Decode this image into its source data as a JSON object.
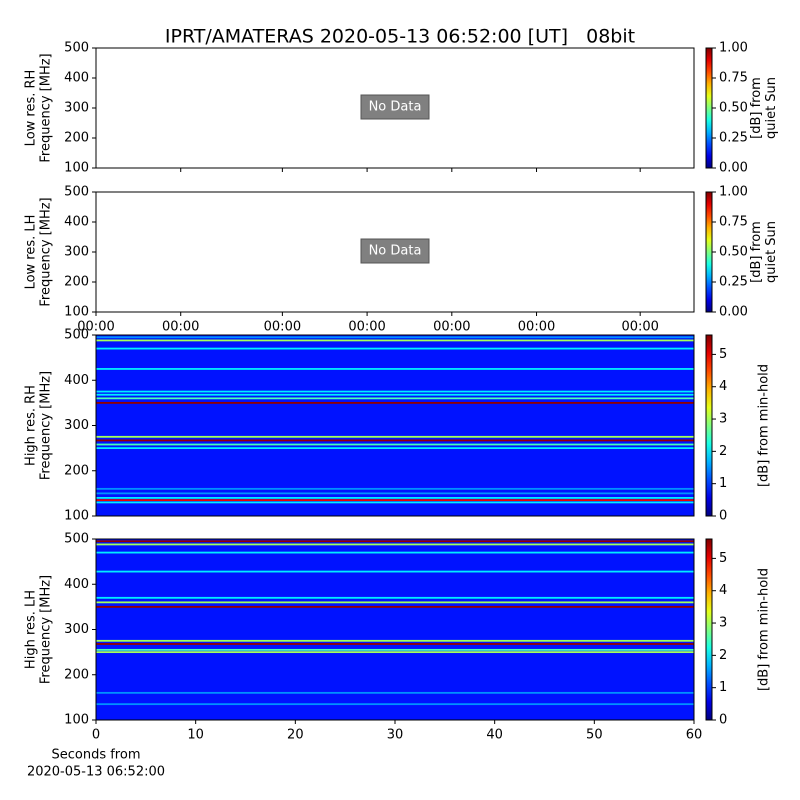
{
  "title": "IPRT/AMATERAS 2020-05-13 06:52:00 [UT]   08bit",
  "x_label": [
    "Seconds from",
    "2020-05-13 06:52:00"
  ],
  "chart_data": [
    {
      "type": "empty",
      "y_label": [
        "Low res. RH",
        "Frequency [MHz]"
      ],
      "annotation": "No Data",
      "xlim": [
        0,
        60
      ],
      "ylim": [
        100,
        500
      ],
      "yticks": [
        100,
        200,
        300,
        400,
        500
      ],
      "xticks": [
        8.5,
        18.7,
        27.2,
        35.7,
        44.2,
        54.6
      ],
      "xtick_labels": false,
      "colorbar": {
        "label": [
          "[dB] from",
          "quiet Sun"
        ],
        "colormap": "jet",
        "lim": [
          0,
          1
        ],
        "ticks": [
          {
            "value": 0,
            "label": "0.00"
          },
          {
            "value": 0.25,
            "label": "0.25"
          },
          {
            "value": 0.5,
            "label": "0.50"
          },
          {
            "value": 0.75,
            "label": "0.75"
          },
          {
            "value": 1,
            "label": "1.00"
          }
        ]
      }
    },
    {
      "type": "empty",
      "y_label": [
        "Low res. LH",
        "Frequency [MHz]"
      ],
      "annotation": "No Data",
      "xlim": [
        0,
        60
      ],
      "ylim": [
        100,
        500
      ],
      "yticks": [
        100,
        200,
        300,
        400,
        500
      ],
      "xticks": [
        {
          "value": 0,
          "label": "00:00"
        },
        {
          "value": 8.5,
          "label": "00:00"
        },
        {
          "value": 18.7,
          "label": "00:00"
        },
        {
          "value": 27.2,
          "label": "00:00"
        },
        {
          "value": 35.7,
          "label": "00:00"
        },
        {
          "value": 44.2,
          "label": "00:00"
        },
        {
          "value": 54.6,
          "label": "00:00"
        }
      ],
      "xtick_labels": true,
      "colorbar": {
        "label": [
          "[dB] from",
          "quiet Sun"
        ],
        "colormap": "jet",
        "lim": [
          0,
          1
        ],
        "ticks": [
          {
            "value": 0,
            "label": "0.00"
          },
          {
            "value": 0.25,
            "label": "0.25"
          },
          {
            "value": 0.5,
            "label": "0.50"
          },
          {
            "value": 0.75,
            "label": "0.75"
          },
          {
            "value": 1,
            "label": "1.00"
          }
        ]
      }
    },
    {
      "type": "spectrogram",
      "y_label": [
        "High res. RH",
        "Frequency [MHz]"
      ],
      "xlim": [
        0,
        60
      ],
      "ylim": [
        100,
        500
      ],
      "yticks": [
        100,
        200,
        300,
        400,
        500
      ],
      "background": 0.8,
      "bands": [
        {
          "freq": 495,
          "value": 1.5
        },
        {
          "freq": 488,
          "value": 3
        },
        {
          "freq": 470,
          "value": 2
        },
        {
          "freq": 425,
          "value": 2
        },
        {
          "freq": 375,
          "value": 2
        },
        {
          "freq": 368,
          "value": 2
        },
        {
          "freq": 360,
          "value": 2.5
        },
        {
          "freq": 350,
          "value": 5.5
        },
        {
          "freq": 275,
          "value": 3
        },
        {
          "freq": 267,
          "value": 5.5
        },
        {
          "freq": 258,
          "value": 2.5
        },
        {
          "freq": 250,
          "value": 2
        },
        {
          "freq": 160,
          "value": 1.5
        },
        {
          "freq": 150,
          "value": 1.5
        },
        {
          "freq": 140,
          "value": 2
        },
        {
          "freq": 135,
          "value": 5
        },
        {
          "freq": 130,
          "value": 2
        }
      ],
      "colorbar": {
        "label": [
          "[dB] from min-hold"
        ],
        "colormap": "jet",
        "lim": [
          0,
          5.6
        ],
        "ticks": [
          0,
          1,
          2,
          3,
          4,
          5
        ]
      }
    },
    {
      "type": "spectrogram",
      "y_label": [
        "High res. LH",
        "Frequency [MHz]"
      ],
      "xlim": [
        0,
        60
      ],
      "ylim": [
        100,
        500
      ],
      "yticks": [
        100,
        200,
        300,
        400,
        500
      ],
      "xticks": [
        0,
        10,
        20,
        30,
        40,
        50,
        60
      ],
      "xtick_labels": true,
      "background": 0.8,
      "bands": [
        {
          "freq": 495,
          "value": 5.5
        },
        {
          "freq": 488,
          "value": 3
        },
        {
          "freq": 470,
          "value": 2
        },
        {
          "freq": 428,
          "value": 2
        },
        {
          "freq": 370,
          "value": 2
        },
        {
          "freq": 360,
          "value": 3
        },
        {
          "freq": 350,
          "value": 5.5
        },
        {
          "freq": 275,
          "value": 3
        },
        {
          "freq": 268,
          "value": 5.5
        },
        {
          "freq": 255,
          "value": 2.5
        },
        {
          "freq": 250,
          "value": 3
        },
        {
          "freq": 160,
          "value": 1.5
        },
        {
          "freq": 135,
          "value": 1.5
        }
      ],
      "colorbar": {
        "label": [
          "[dB] from min-hold"
        ],
        "colormap": "jet",
        "lim": [
          0,
          5.6
        ],
        "ticks": [
          0,
          1,
          2,
          3,
          4,
          5
        ]
      }
    }
  ]
}
